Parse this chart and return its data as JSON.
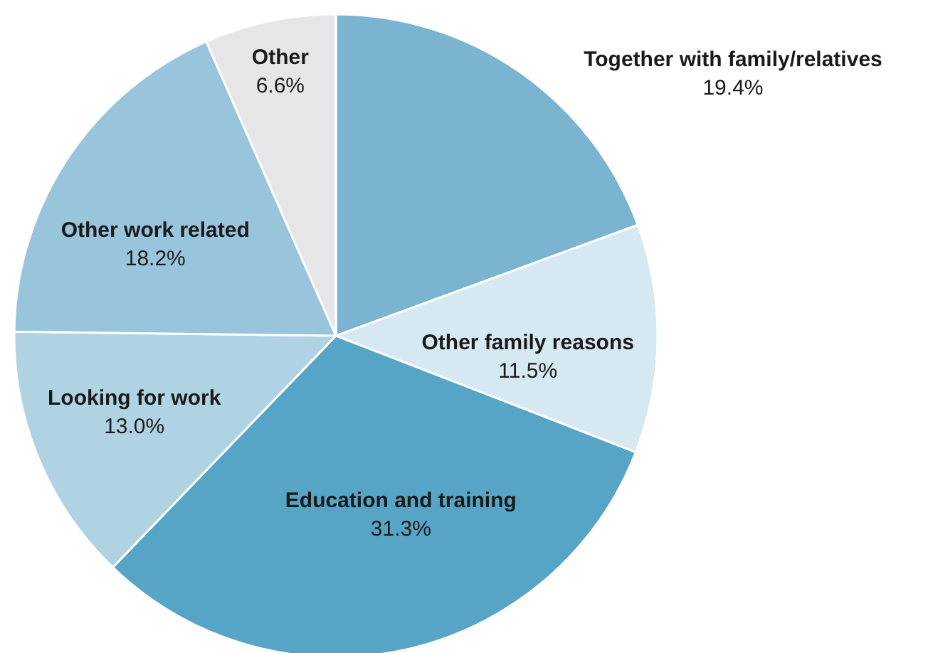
{
  "chart_data": {
    "type": "pie",
    "categories": [
      "Together with family/relatives",
      "Other family reasons",
      "Education and training",
      "Looking for work",
      "Other work related",
      "Other"
    ],
    "values": [
      19.4,
      11.5,
      31.3,
      13.0,
      18.2,
      6.6
    ],
    "value_labels": [
      "19.4%",
      "11.5%",
      "31.3%",
      "13.0%",
      "18.2%",
      "6.6%"
    ],
    "colors": [
      "#7ab4d1",
      "#d6e8f1",
      "#57a5c6",
      "#b0d3e4",
      "#99c5dc",
      "#e6e6e8"
    ]
  }
}
